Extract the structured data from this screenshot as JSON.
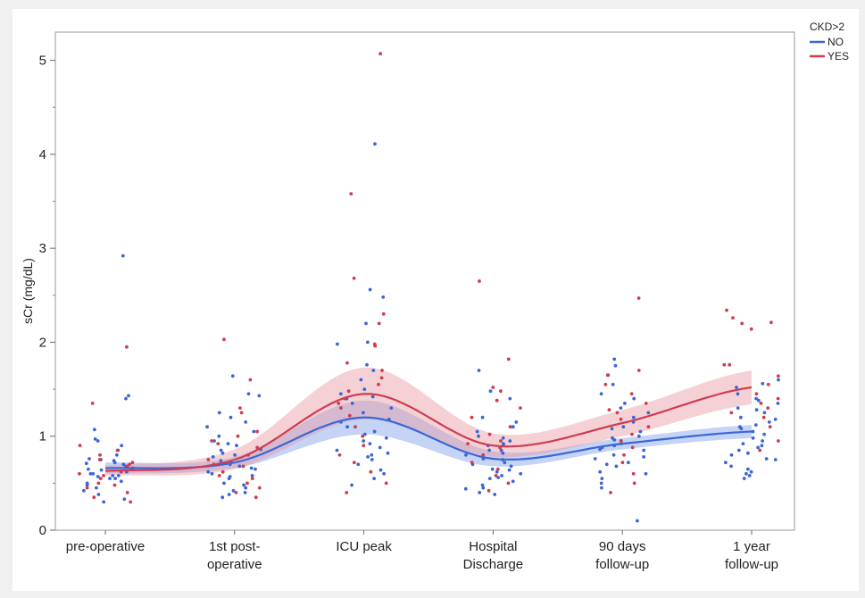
{
  "chart_data": {
    "type": "scatter",
    "title": "",
    "xlabel": "",
    "ylabel": "sCr (mg/dL)",
    "ylim": [
      0,
      5.3
    ],
    "yticks": [
      0,
      1,
      2,
      3,
      4,
      5
    ],
    "categories": [
      [
        "pre-operative",
        ""
      ],
      [
        "1st post-",
        "operative"
      ],
      [
        "ICU peak",
        ""
      ],
      [
        "Hospital",
        "Discharge"
      ],
      [
        "90 days",
        "follow-up"
      ],
      [
        "1 year",
        "follow-up"
      ]
    ],
    "legend": {
      "title": "CKD>2",
      "placement": "top-right"
    },
    "series": [
      {
        "name": "NO",
        "color": "#3b67d6",
        "band_color": "#7f9de8",
        "smooth_fit": [
          0.66,
          0.72,
          1.2,
          0.76,
          0.92,
          1.05
        ],
        "ci_lower": [
          0.6,
          0.66,
          1.02,
          0.68,
          0.86,
          0.98
        ],
        "ci_upper": [
          0.72,
          0.78,
          1.38,
          0.84,
          0.98,
          1.12
        ],
        "points": [
          [
            0.74,
            1.07,
            0.58,
            0.66,
            0.55,
            0.72,
            0.48,
            0.62,
            0.8,
            0.7,
            0.58,
            0.45,
            0.9,
            0.65,
            0.55,
            0.6,
            0.76,
            0.52,
            0.68,
            0.33,
            0.42,
            0.3,
            0.85,
            0.95,
            0.6,
            0.57,
            1.43,
            1.4,
            0.75,
            0.64,
            2.92,
            0.5,
            0.71,
            0.97,
            0.38
          ],
          [
            0.8,
            0.86,
            1.64,
            1.45,
            1.25,
            0.72,
            0.65,
            0.58,
            0.5,
            0.9,
            1.05,
            1.15,
            0.78,
            0.68,
            0.6,
            0.4,
            0.38,
            0.45,
            0.85,
            0.92,
            0.55,
            0.7,
            1.43,
            1.2,
            0.62,
            0.74,
            0.95,
            0.48,
            1.1,
            0.82,
            0.35,
            0.57,
            1.0,
            0.66,
            0.42
          ],
          [
            2.2,
            2.48,
            2.56,
            4.11,
            1.98,
            1.76,
            1.6,
            1.5,
            1.42,
            1.35,
            1.25,
            1.18,
            1.1,
            1.02,
            0.98,
            0.92,
            0.85,
            0.8,
            0.75,
            0.7,
            0.64,
            0.55,
            0.48,
            0.88,
            1.3,
            0.95,
            1.4,
            2.0,
            1.7,
            0.6,
            0.78,
            1.05,
            1.45,
            0.82,
            1.15
          ],
          [
            1.7,
            1.48,
            1.4,
            1.2,
            1.1,
            1.0,
            0.95,
            0.9,
            0.85,
            0.8,
            0.76,
            0.72,
            0.68,
            0.64,
            0.6,
            0.56,
            0.52,
            0.48,
            0.44,
            0.4,
            0.38,
            0.85,
            0.9,
            0.75,
            0.65,
            0.58,
            1.15,
            0.98,
            0.7,
            0.62,
            1.05,
            0.82,
            0.55,
            0.45,
            0.92
          ],
          [
            1.82,
            1.75,
            1.65,
            1.55,
            1.45,
            1.35,
            1.25,
            1.15,
            1.1,
            1.05,
            1.0,
            0.98,
            0.95,
            0.92,
            0.88,
            0.85,
            0.8,
            0.76,
            0.72,
            0.68,
            0.62,
            0.55,
            0.5,
            0.45,
            0.1,
            1.4,
            1.2,
            0.9,
            0.7,
            1.3,
            0.6,
            1.08,
            0.86,
            0.78,
            0.96
          ],
          [
            1.6,
            1.52,
            1.45,
            1.4,
            1.35,
            1.3,
            1.25,
            1.2,
            1.15,
            1.1,
            1.05,
            1.02,
            0.98,
            0.95,
            0.9,
            0.85,
            0.8,
            0.76,
            0.72,
            0.68,
            0.62,
            0.58,
            0.55,
            1.56,
            1.38,
            1.12,
            0.92,
            0.82,
            0.65,
            1.28,
            1.08,
            0.75,
            1.18,
            0.88,
            0.6
          ]
        ]
      },
      {
        "name": "YES",
        "color": "#cf3c4f",
        "band_color": "#e89aa4",
        "smooth_fit": [
          0.63,
          0.75,
          1.45,
          0.9,
          1.14,
          1.52
        ],
        "ci_lower": [
          0.58,
          0.65,
          1.18,
          0.78,
          1.0,
          1.34
        ],
        "ci_upper": [
          0.69,
          0.86,
          1.73,
          1.03,
          1.28,
          1.7
        ],
        "points": [
          [
            1.95,
            1.35,
            0.9,
            0.8,
            0.75,
            0.7,
            0.65,
            0.6,
            0.55,
            0.5,
            0.45,
            0.4,
            0.35,
            0.3,
            0.85,
            0.72,
            0.62,
            0.58,
            0.48,
            0.68
          ],
          [
            2.03,
            1.6,
            1.3,
            1.25,
            1.0,
            0.95,
            0.88,
            0.8,
            0.75,
            0.68,
            0.62,
            0.55,
            0.5,
            0.45,
            0.4,
            0.35,
            0.92,
            0.7,
            0.58,
            1.05
          ],
          [
            5.07,
            3.58,
            2.68,
            2.3,
            2.2,
            1.98,
            1.96,
            1.78,
            1.7,
            1.62,
            1.55,
            1.48,
            1.4,
            1.3,
            1.22,
            1.1,
            1.0,
            0.9,
            0.8,
            0.72,
            0.62,
            0.5,
            0.4,
            1.35
          ],
          [
            2.65,
            1.82,
            1.52,
            1.48,
            1.38,
            1.2,
            1.1,
            1.02,
            0.95,
            0.88,
            0.8,
            0.72,
            0.65,
            0.58,
            0.5,
            0.42,
            0.92,
            1.3
          ],
          [
            2.47,
            1.7,
            1.65,
            1.55,
            1.45,
            1.35,
            1.25,
            1.18,
            1.1,
            1.02,
            0.95,
            0.88,
            0.8,
            0.72,
            0.6,
            0.5,
            0.4,
            1.28
          ],
          [
            2.34,
            2.26,
            2.21,
            2.14,
            2.2,
            1.76,
            1.76,
            1.64,
            1.55,
            1.45,
            1.4,
            1.3,
            1.2,
            1.1,
            0.95,
            0.85,
            1.35,
            1.25
          ]
        ]
      }
    ]
  }
}
